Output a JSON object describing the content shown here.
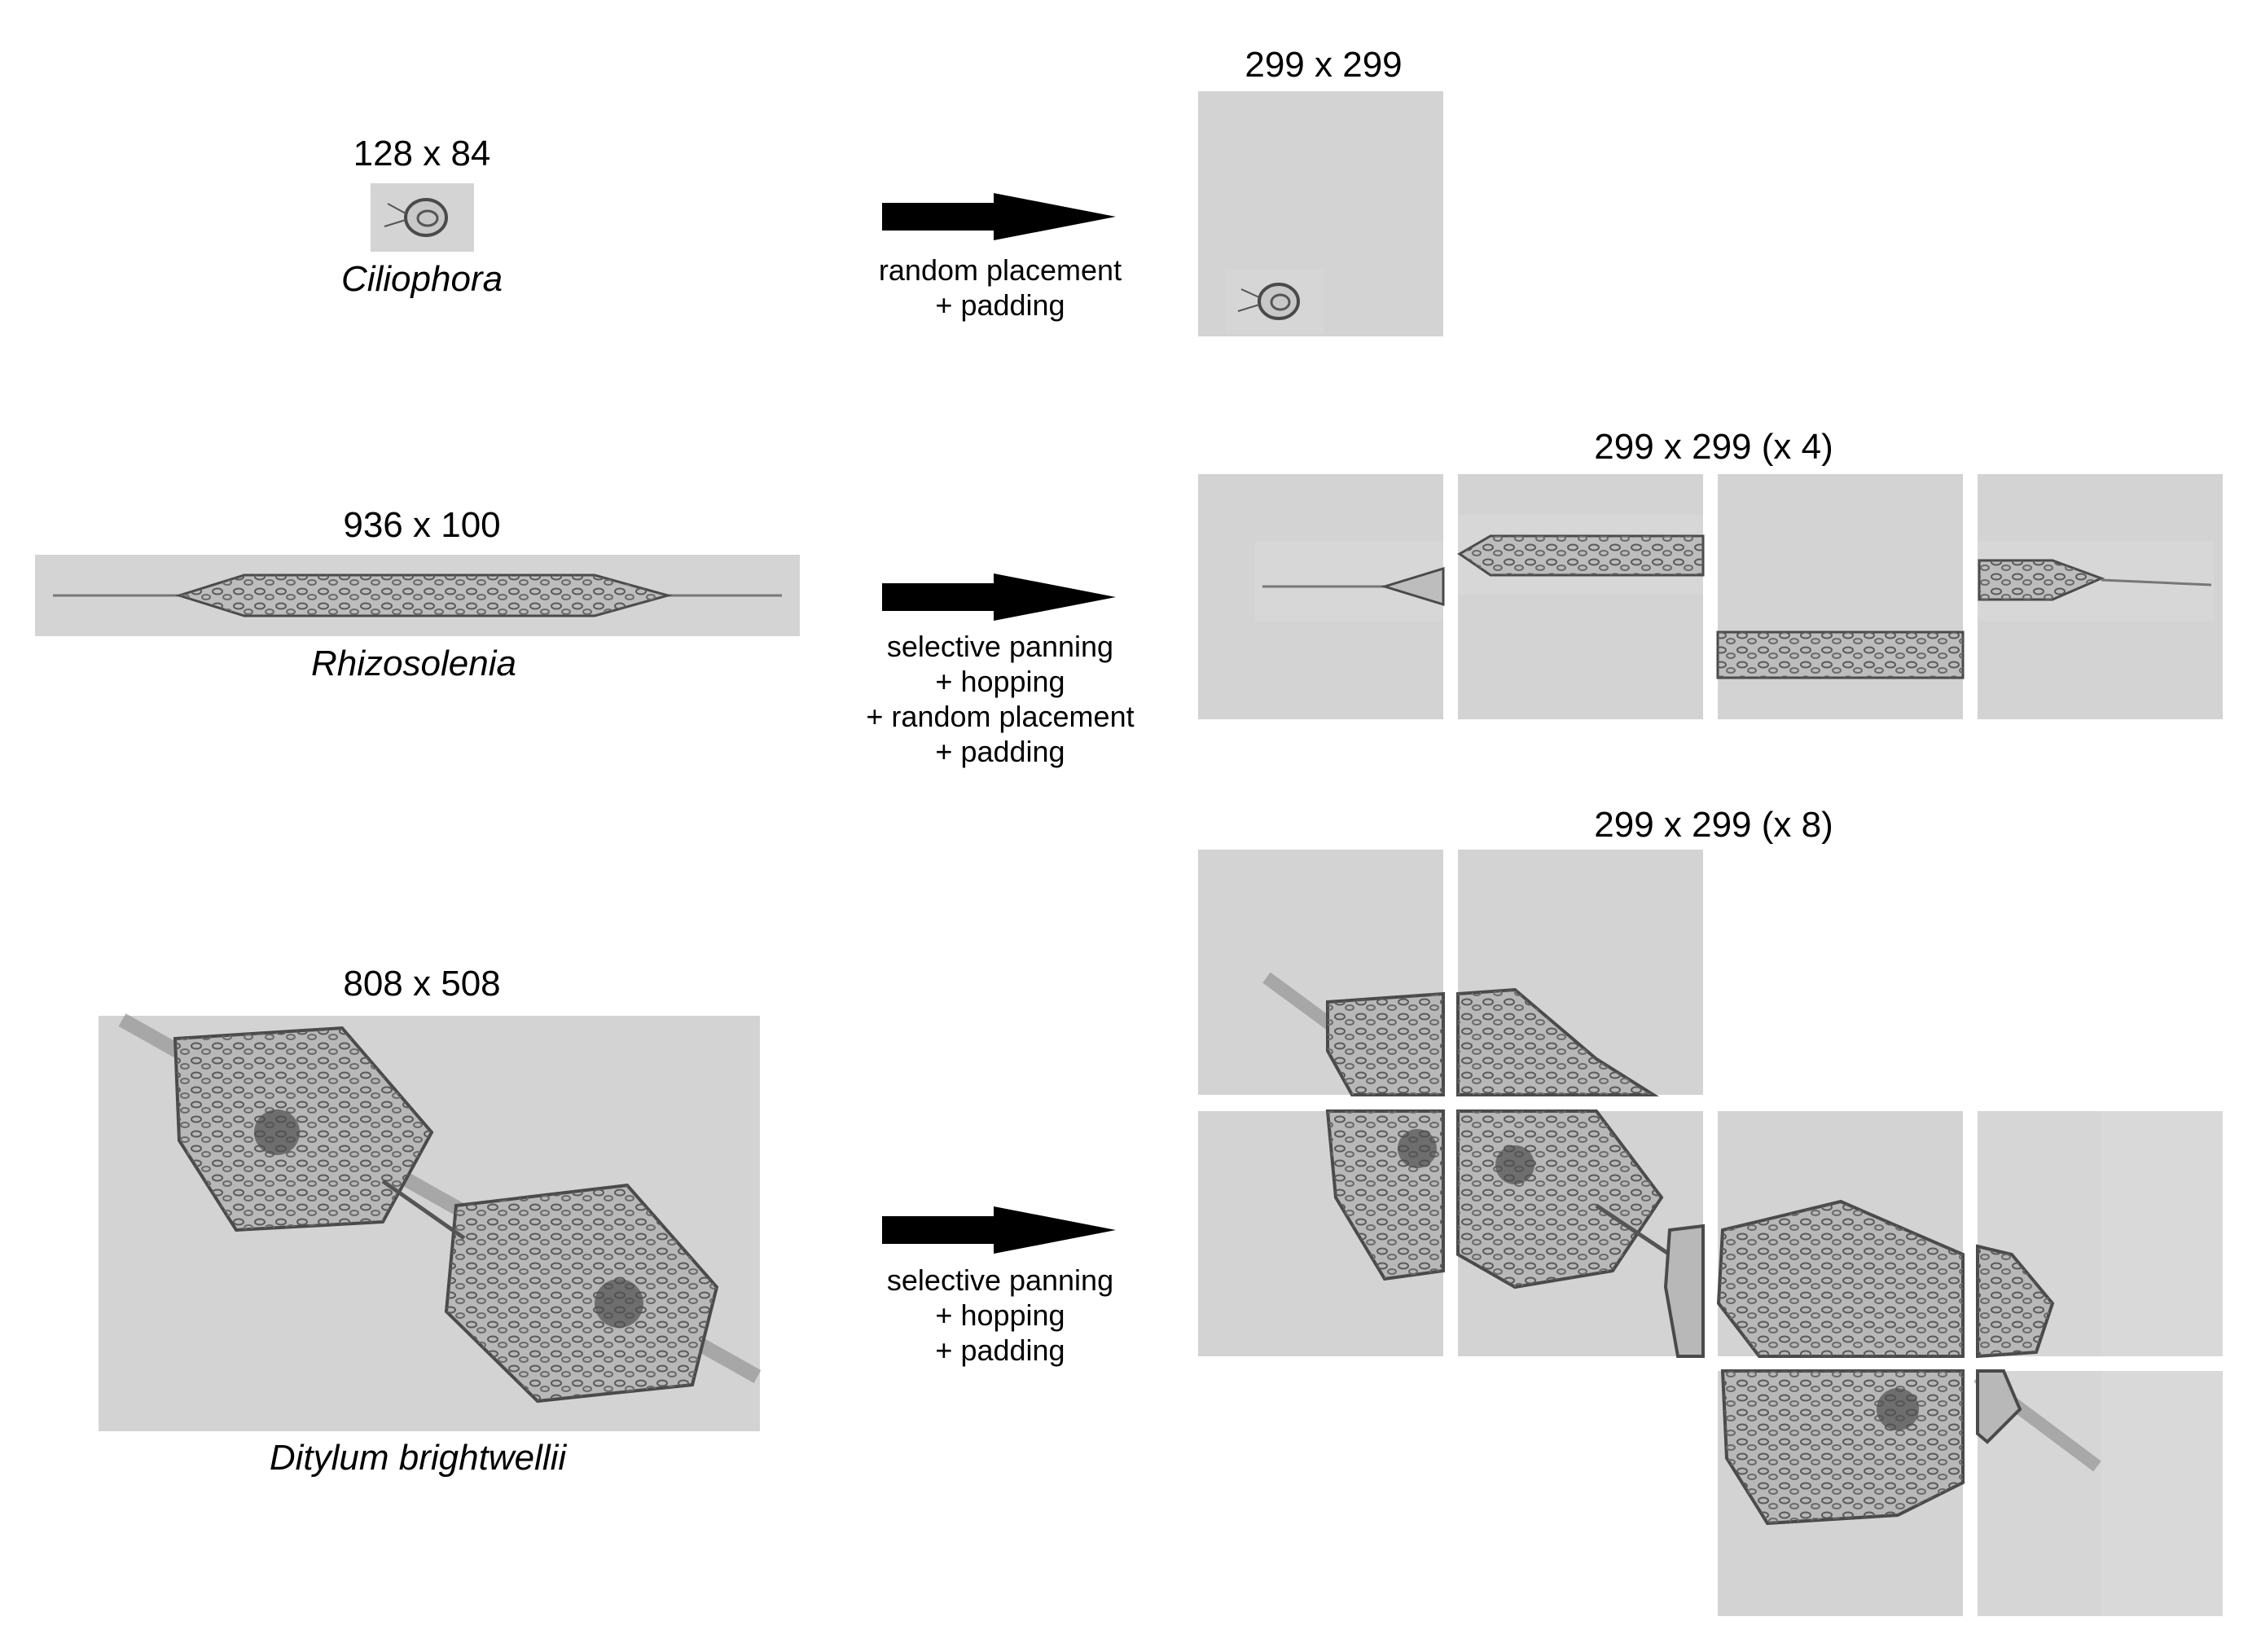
{
  "rows": [
    {
      "source_size": "128 x 84",
      "taxon": "Ciliophora",
      "process": [
        "random placement",
        "+ padding"
      ],
      "output_size": "299 x 299"
    },
    {
      "source_size": "936 x 100",
      "taxon": "Rhizosolenia",
      "process": [
        "selective panning",
        "+ hopping",
        "+ random placement",
        "+ padding"
      ],
      "output_size": "299 x 299 (x 4)"
    },
    {
      "source_size": "808 x 508",
      "taxon": "Ditylum brightwellii",
      "process": [
        "selective panning",
        "+ hopping",
        "+ padding"
      ],
      "output_size": "299 x 299 (x 8)"
    }
  ],
  "colors": {
    "tile_background": "#d3d3d3",
    "cell_outline": "#3a3a3a",
    "arrow": "#000000"
  }
}
